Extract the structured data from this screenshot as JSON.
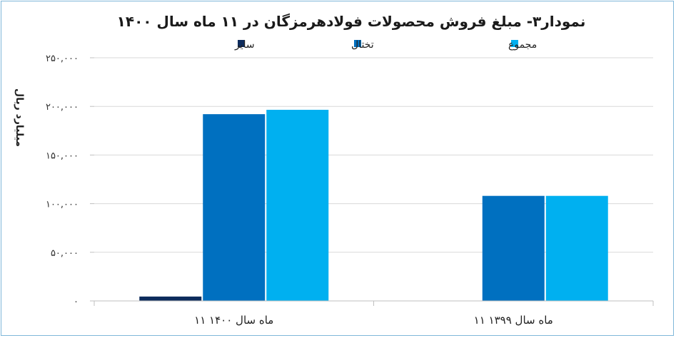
{
  "chart_data": {
    "type": "bar",
    "title": "نمودار۳- مبلغ فروش محصولات فولادهرمزگان در ۱۱ ماه سال ۱۴۰۰",
    "ylabel": "میلیارد ریال",
    "xlabel": "",
    "categories": [
      "۱۱ ماه سال ۱۴۰۰",
      "۱۱ ماه سال ۱۳۹۹"
    ],
    "series": [
      {
        "name": "سایر",
        "values": [
          4500,
          0
        ],
        "color": "#0d2b5c"
      },
      {
        "name": "تختال",
        "values": [
          192000,
          108000
        ],
        "color": "#0070c0"
      },
      {
        "name": "مجموع",
        "values": [
          196500,
          108000
        ],
        "color": "#00b0f0"
      }
    ],
    "ylim": [
      0,
      250000
    ],
    "yticks": [
      0,
      50000,
      100000,
      150000,
      200000,
      250000
    ],
    "ytick_labels": [
      "۰",
      "۵۰,۰۰۰",
      "۱۰۰,۰۰۰",
      "۱۵۰,۰۰۰",
      "۲۰۰,۰۰۰",
      "۲۵۰,۰۰۰"
    ],
    "grid": true,
    "legend_position": "top"
  }
}
